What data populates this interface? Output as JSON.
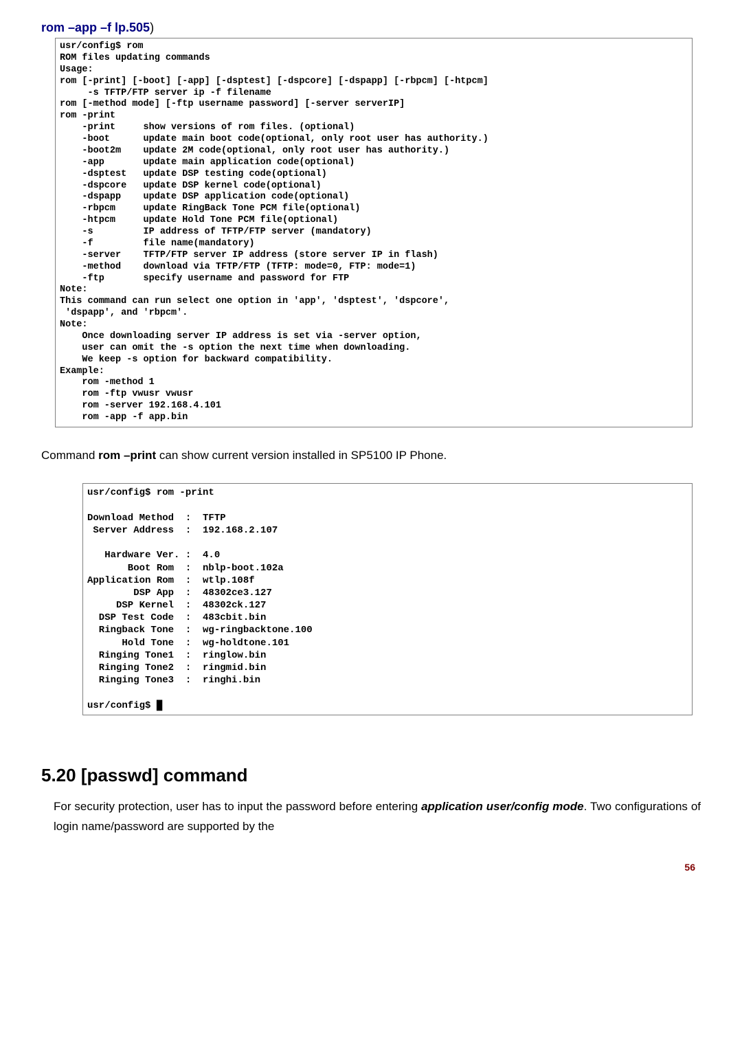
{
  "cmd_title_prefix": "rom –app –f lp.505",
  "cmd_title_suffix": ")",
  "terminal1_lines": [
    "usr/config$ rom",
    "ROM files updating commands",
    "Usage:",
    "rom [-print] [-boot] [-app] [-dsptest] [-dspcore] [-dspapp] [-rbpcm] [-htpcm]",
    "     -s TFTP/FTP server ip -f filename",
    "rom [-method mode] [-ftp username password] [-server serverIP]",
    "rom -print",
    "    -print     show versions of rom files. (optional)",
    "    -boot      update main boot code(optional, only root user has authority.)",
    "    -boot2m    update 2M code(optional, only root user has authority.)",
    "    -app       update main application code(optional)",
    "    -dsptest   update DSP testing code(optional)",
    "    -dspcore   update DSP kernel code(optional)",
    "    -dspapp    update DSP application code(optional)",
    "    -rbpcm     update RingBack Tone PCM file(optional)",
    "    -htpcm     update Hold Tone PCM file(optional)",
    "    -s         IP address of TFTP/FTP server (mandatory)",
    "    -f         file name(mandatory)",
    "    -server    TFTP/FTP server IP address (store server IP in flash)",
    "    -method    download via TFTP/FTP (TFTP: mode=0, FTP: mode=1)",
    "    -ftp       specify username and password for FTP",
    "Note:",
    "This command can run select one option in 'app', 'dsptest', 'dspcore',",
    " 'dspapp', and 'rbpcm'.",
    "Note:",
    "    Once downloading server IP address is set via -server option,",
    "    user can omit the -s option the next time when downloading.",
    "    We keep -s option for backward compatibility.",
    "Example:",
    "    rom -method 1",
    "    rom -ftp vwusr vwusr",
    "    rom -server 192.168.4.101",
    "    rom -app -f app.bin"
  ],
  "body_text_1": "Command ",
  "body_text_bold": "rom –print",
  "body_text_2": " can show current version installed in SP5100 IP Phone.",
  "terminal2_lines": [
    "usr/config$ rom -print",
    "",
    "Download Method  :  TFTP",
    " Server Address  :  192.168.2.107",
    "",
    "   Hardware Ver. :  4.0",
    "       Boot Rom  :  nblp-boot.102a",
    "Application Rom  :  wtlp.108f",
    "        DSP App  :  48302ce3.127",
    "     DSP Kernel  :  48302ck.127",
    "  DSP Test Code  :  483cbit.bin",
    "  Ringback Tone  :  wg-ringbacktone.100",
    "      Hold Tone  :  wg-holdtone.101",
    "  Ringing Tone1  :  ringlow.bin",
    "  Ringing Tone2  :  ringmid.bin",
    "  Ringing Tone3  :  ringhi.bin",
    "",
    "usr/config$ █"
  ],
  "section_heading": "5.20 [passwd] command",
  "section_body_1": "For security protection, user has to input the password before entering ",
  "section_body_bold1": "application user/config mode",
  "section_body_2": ". Two configurations of login name/password are supported by the",
  "page_number": "56"
}
